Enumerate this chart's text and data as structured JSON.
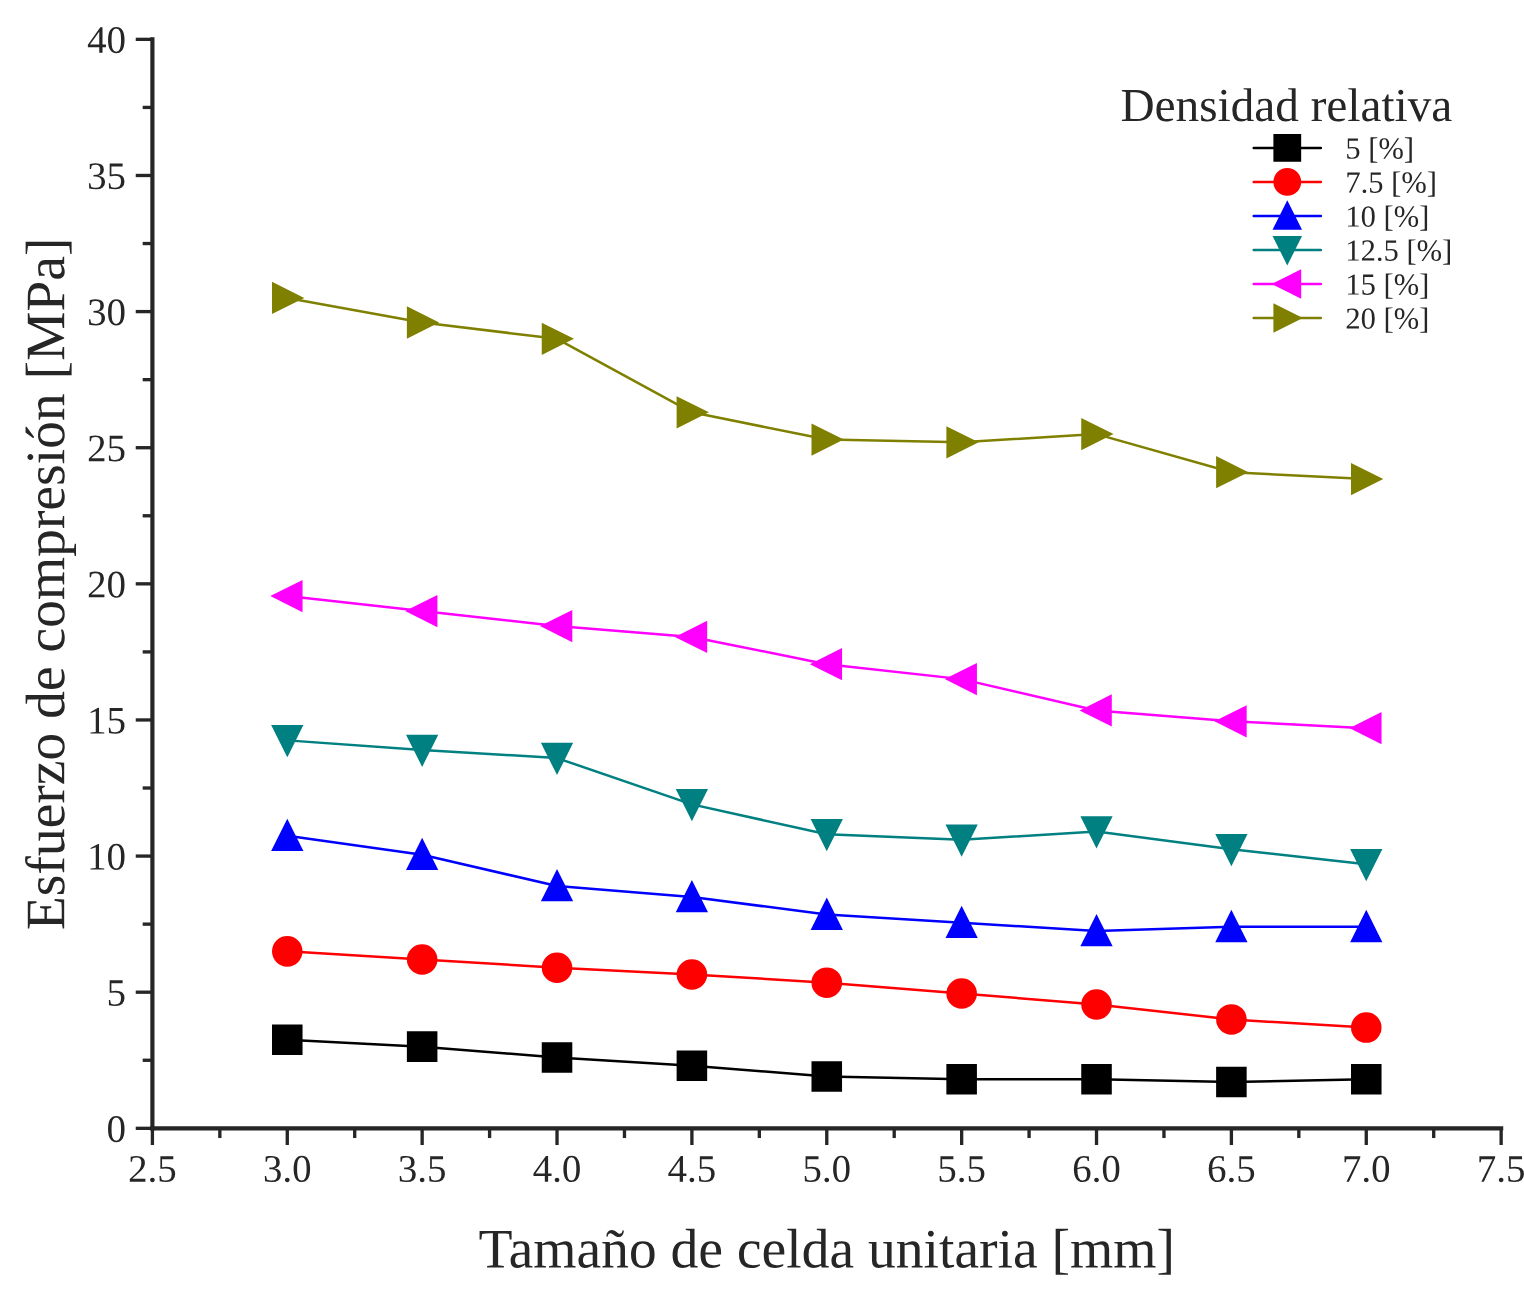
{
  "chart_data": {
    "type": "line",
    "xlabel": "Tamaño de celda unitaria [mm]",
    "ylabel": "Esfuerzo de compresión [MPa]",
    "legend_title": "Densidad relativa",
    "x": [
      3.0,
      3.5,
      4.0,
      4.5,
      5.0,
      5.5,
      6.0,
      6.5,
      7.0
    ],
    "series": [
      {
        "name": "5 [%]",
        "color": "#000000",
        "marker": "square",
        "values": [
          3.25,
          3.0,
          2.6,
          2.3,
          1.9,
          1.8,
          1.8,
          1.7,
          1.8
        ]
      },
      {
        "name": "7.5 [%]",
        "color": "#ff0000",
        "marker": "circle",
        "values": [
          6.5,
          6.2,
          5.9,
          5.65,
          5.35,
          4.95,
          4.55,
          4.0,
          3.7
        ]
      },
      {
        "name": "10 [%]",
        "color": "#0000ff",
        "marker": "triangle",
        "values": [
          10.75,
          10.05,
          8.9,
          8.5,
          7.85,
          7.55,
          7.25,
          7.4,
          7.4
        ]
      },
      {
        "name": "12.5 [%]",
        "color": "#008080",
        "marker": "triangle-down",
        "values": [
          14.25,
          13.9,
          13.6,
          11.9,
          10.8,
          10.6,
          10.9,
          10.25,
          9.7
        ]
      },
      {
        "name": "15 [%]",
        "color": "#ff00ff",
        "marker": "triangle-left",
        "values": [
          19.55,
          19.0,
          18.45,
          18.05,
          17.05,
          16.5,
          15.35,
          14.95,
          14.7
        ]
      },
      {
        "name": "20 [%]",
        "color": "#808000",
        "marker": "triangle-right",
        "values": [
          30.5,
          29.6,
          29.0,
          26.3,
          25.3,
          25.2,
          25.5,
          24.1,
          23.85
        ]
      }
    ],
    "xlim": [
      2.5,
      7.5
    ],
    "xticks": [
      {
        "value": 2.5,
        "label": "2.5"
      },
      {
        "value": 3.0,
        "label": "3.0"
      },
      {
        "value": 3.5,
        "label": "3.5"
      },
      {
        "value": 4.0,
        "label": "4.0"
      },
      {
        "value": 4.5,
        "label": "4.5"
      },
      {
        "value": 5.0,
        "label": "5.0"
      },
      {
        "value": 5.5,
        "label": "5.5"
      },
      {
        "value": 6.0,
        "label": "6.0"
      },
      {
        "value": 6.5,
        "label": "6.5"
      },
      {
        "value": 7.0,
        "label": "7.0"
      },
      {
        "value": 7.5,
        "label": "7.5"
      }
    ],
    "ylim": [
      0,
      40
    ],
    "yticks": [
      0,
      5,
      10,
      15,
      20,
      25,
      30,
      35,
      40
    ],
    "grid": false,
    "legend": "top right"
  }
}
